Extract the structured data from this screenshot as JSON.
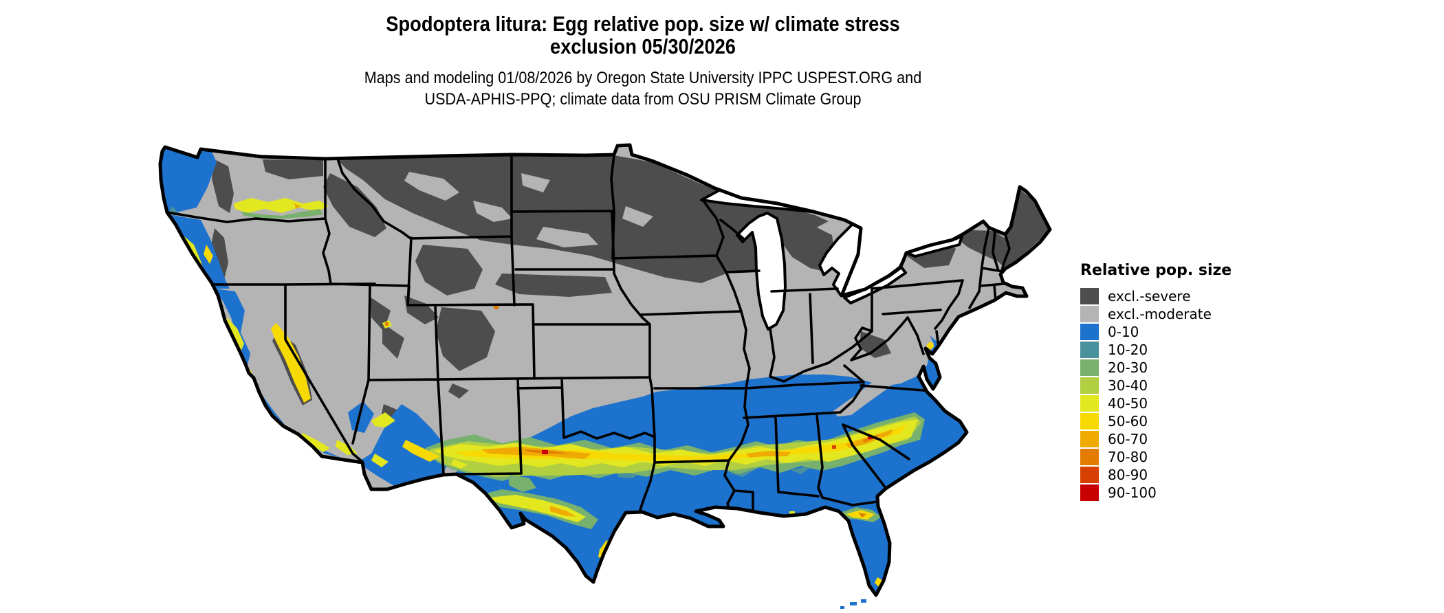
{
  "header": {
    "title_line1": "Spodoptera litura: Egg relative pop. size w/ climate stress",
    "title_line2": "exclusion 05/30/2026",
    "subtitle_line1": "Maps and modeling 01/08/2026 by Oregon State University IPPC USPEST.ORG and",
    "subtitle_line2": "USDA-APHIS-PPQ; climate data from OSU PRISM Climate Group"
  },
  "legend": {
    "title": "Relative pop. size",
    "entries": [
      {
        "label": "excl.-severe",
        "color": "#4d4d4d",
        "key": "severe"
      },
      {
        "label": "excl.-moderate",
        "color": "#b4b4b4",
        "key": "moderate"
      },
      {
        "label": "0-10",
        "color": "#1d72cd",
        "key": "b0010"
      },
      {
        "label": "10-20",
        "color": "#4a919e",
        "key": "b1020"
      },
      {
        "label": "20-30",
        "color": "#78b06e",
        "key": "b2030"
      },
      {
        "label": "30-40",
        "color": "#b2cf41",
        "key": "b3040"
      },
      {
        "label": "40-50",
        "color": "#e3e71f",
        "key": "b4050"
      },
      {
        "label": "50-60",
        "color": "#f7da04",
        "key": "b5060"
      },
      {
        "label": "60-70",
        "color": "#efab04",
        "key": "b6070"
      },
      {
        "label": "70-80",
        "color": "#e27c02",
        "key": "b7080"
      },
      {
        "label": "80-90",
        "color": "#d64000",
        "key": "b8090"
      },
      {
        "label": "90-100",
        "color": "#c90002",
        "key": "b90100"
      }
    ]
  },
  "map": {
    "description": "Conterminous United States raster map with state boundaries",
    "palette": {
      "severe": "#4d4d4d",
      "moderate": "#b4b4b4",
      "b0010": "#1d72cd",
      "b1020": "#4a919e",
      "b2030": "#78b06e",
      "b3040": "#b2cf41",
      "b4050": "#e3e71f",
      "b5060": "#f7da04",
      "b6070": "#efab04",
      "b7080": "#e27c02",
      "b8090": "#d64000",
      "b90100": "#c90002",
      "water": "#ffffff",
      "border": "#000000"
    }
  }
}
